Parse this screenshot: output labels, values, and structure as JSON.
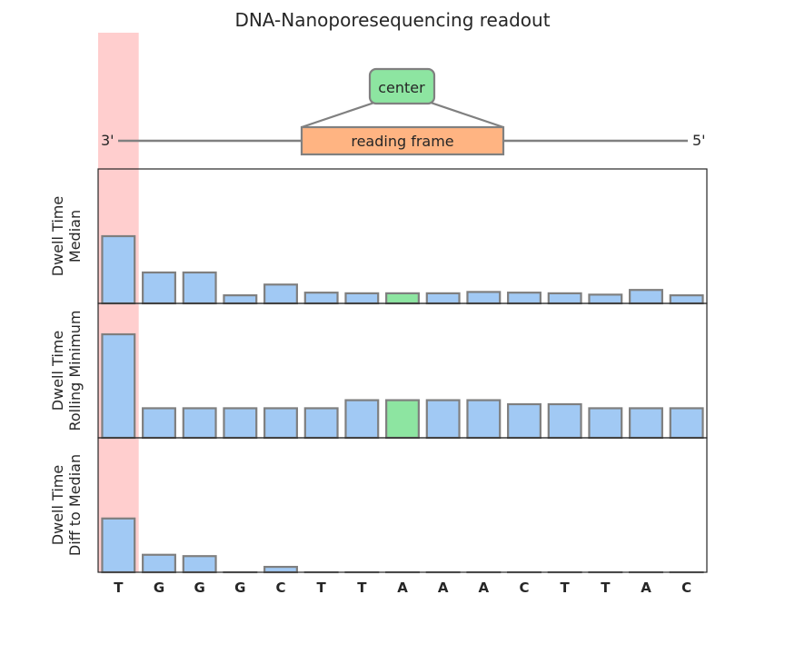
{
  "title": "DNA-Nanoporesequencing readout",
  "strand": {
    "left_end": "3'",
    "right_end": "5'",
    "reading_frame_label": "reading frame",
    "center_label": "center"
  },
  "colors": {
    "bar": "#a1c9f4",
    "bar_center": "#8de5a1",
    "bar_edge": "#7f7f7f",
    "highlight": "#ffb3b3",
    "reading_frame": "#ffb482",
    "center_box": "#8de5a1",
    "strand_line": "#808080"
  },
  "chart_data": {
    "type": "bar",
    "title": "DNA-Nanoporesequencing readout",
    "categories": [
      "T",
      "G",
      "G",
      "G",
      "C",
      "T",
      "T",
      "A",
      "A",
      "A",
      "C",
      "T",
      "T",
      "A",
      "C"
    ],
    "highlight_index": 0,
    "center_index": 7,
    "panels": [
      {
        "ylabel": [
          "Dwell Time",
          "Median"
        ],
        "ylim": [
          0,
          1
        ],
        "values": [
          0.5,
          0.23,
          0.23,
          0.06,
          0.14,
          0.08,
          0.075,
          0.075,
          0.075,
          0.085,
          0.08,
          0.075,
          0.065,
          0.1,
          0.06
        ]
      },
      {
        "ylabel": [
          "Dwell Time",
          "Rolling Minimum"
        ],
        "ylim": [
          0,
          1
        ],
        "values": [
          0.77,
          0.22,
          0.22,
          0.22,
          0.22,
          0.22,
          0.28,
          0.28,
          0.28,
          0.28,
          0.25,
          0.25,
          0.22,
          0.22,
          0.22
        ]
      },
      {
        "ylabel": [
          "Dwell Time",
          "Diff to Median"
        ],
        "ylim": [
          0,
          1
        ],
        "values": [
          0.4,
          0.13,
          0.12,
          0.0,
          0.04,
          0.0,
          0.0,
          0.0,
          0.0,
          0.0,
          0.0,
          0.0,
          0.0,
          0.0,
          0.0
        ]
      }
    ]
  }
}
